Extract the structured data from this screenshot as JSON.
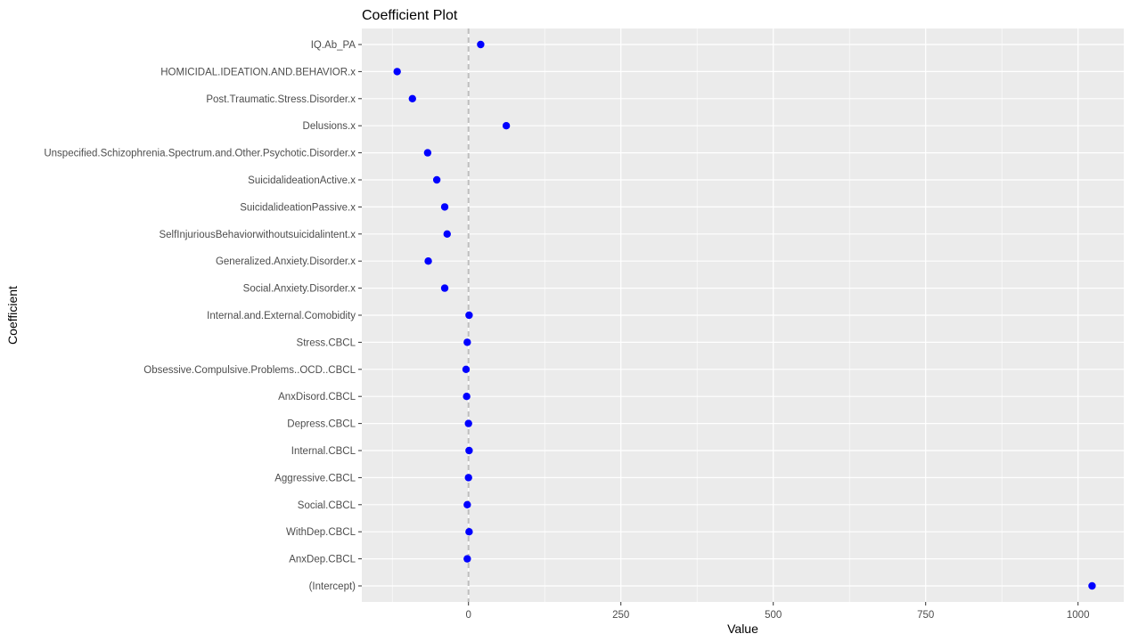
{
  "chart_data": {
    "type": "scatter",
    "title": "Coefficient Plot",
    "xlabel": "Value",
    "ylabel": "Coefficient",
    "xlim": [
      -175,
      1075
    ],
    "x_ticks": [
      0,
      250,
      500,
      750,
      1000
    ],
    "reference_line": 0,
    "grid": true,
    "point_color": "#0000FF",
    "panel_color": "#EBEBEB",
    "grid_color": "#FFFFFF",
    "reference_line_color": "#BEBEBE",
    "points": [
      {
        "label": "IQ.Ab_PA",
        "value": 20
      },
      {
        "label": "HOMICIDAL.IDEATION.AND.BEHAVIOR.x",
        "value": -117
      },
      {
        "label": "Post.Traumatic.Stress.Disorder.x",
        "value": -92
      },
      {
        "label": "Delusions.x",
        "value": 62
      },
      {
        "label": "Unspecified.Schizophrenia.Spectrum.and.Other.Psychotic.Disorder.x",
        "value": -67
      },
      {
        "label": "SuicidalideationActive.x",
        "value": -52
      },
      {
        "label": "SuicidalideationPassive.x",
        "value": -39
      },
      {
        "label": "SelfInjuriousBehaviorwithoutsuicidalintent.x",
        "value": -35
      },
      {
        "label": "Generalized.Anxiety.Disorder.x",
        "value": -66
      },
      {
        "label": "Social.Anxiety.Disorder.x",
        "value": -39
      },
      {
        "label": "Internal.and.External.Comobidity",
        "value": 1
      },
      {
        "label": "Stress.CBCL",
        "value": -2
      },
      {
        "label": "Obsessive.Compulsive.Problems..OCD..CBCL",
        "value": -4
      },
      {
        "label": "AnxDisord.CBCL",
        "value": -3
      },
      {
        "label": "Depress.CBCL",
        "value": 0
      },
      {
        "label": "Internal.CBCL",
        "value": 1
      },
      {
        "label": "Aggressive.CBCL",
        "value": 0
      },
      {
        "label": "Social.CBCL",
        "value": -2
      },
      {
        "label": "WithDep.CBCL",
        "value": 1
      },
      {
        "label": "AnxDep.CBCL",
        "value": -2
      },
      {
        "label": "(Intercept)",
        "value": 1023
      }
    ]
  }
}
